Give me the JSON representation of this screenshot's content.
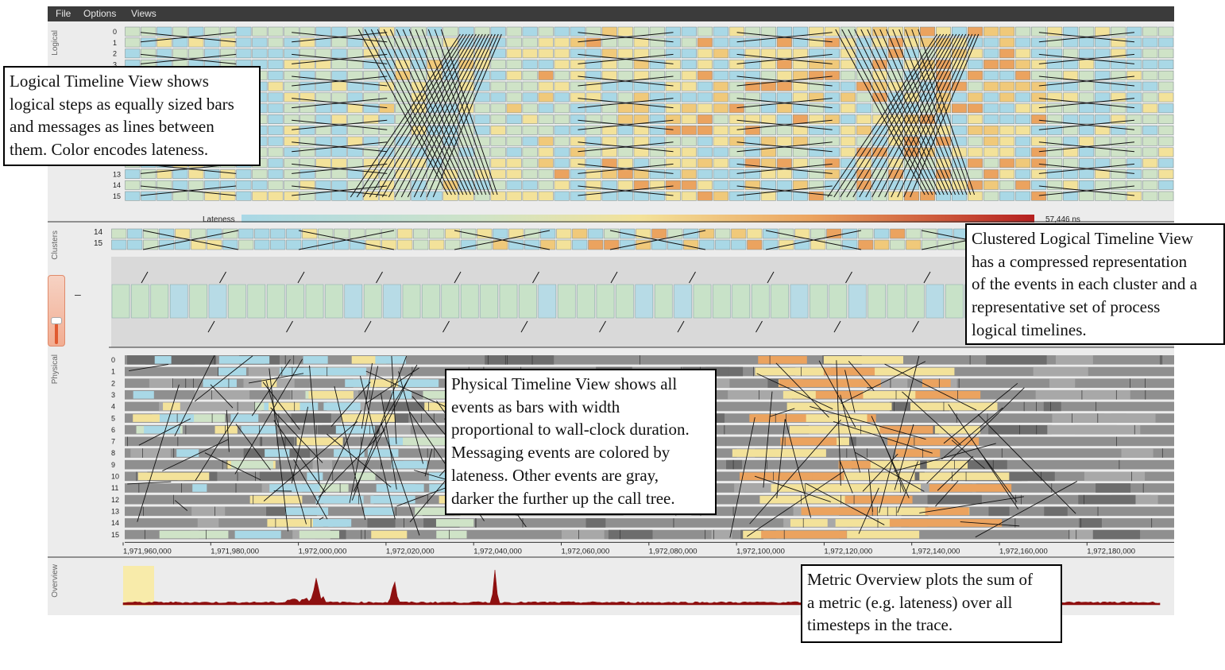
{
  "menubar": {
    "items": [
      "File",
      "Options",
      "Views"
    ]
  },
  "side_labels": {
    "logical": "Logical",
    "clusters": "Clusters",
    "physical": "Physical",
    "overview": "Overview"
  },
  "logical_view": {
    "process_labels": [
      "0",
      "1",
      "2",
      "3",
      "",
      "",
      "",
      "",
      "",
      "",
      "",
      "",
      "",
      "13",
      "14",
      "15"
    ]
  },
  "lateness_legend": {
    "label": "Lateness",
    "max": "57,446 ns"
  },
  "cluster_view": {
    "process_labels": [
      "14",
      "15"
    ]
  },
  "physical_view": {
    "process_labels": [
      "0",
      "1",
      "2",
      "3",
      "4",
      "5",
      "6",
      "7",
      "8",
      "9",
      "10",
      "11",
      "12",
      "13",
      "14",
      "15"
    ],
    "axis_ticks": [
      "1,971,960,000",
      "1,971,980,000",
      "1,972,000,000",
      "1,972,020,000",
      "1,972,040,000",
      "1,972,060,000",
      "1,972,080,000",
      "1,972,100,000",
      "1,972,120,000",
      "1,972,140,000",
      "1,972,160,000",
      "1,972,180,000"
    ]
  },
  "colors": {
    "on_time": "#a9d8e6",
    "slightly_late": "#cfe3c7",
    "medium_late": "#f3e29a",
    "late": "#eba35f",
    "very_late": "#b52020",
    "menubar": "#3b3b3b"
  },
  "callouts": {
    "logical": [
      "Logical Timeline View shows",
      "logical steps as equally sized bars",
      "and messages as lines between",
      "them. Color encodes lateness."
    ],
    "clustered": [
      "Clustered Logical Timeline View",
      "has a compressed representation",
      "of the events in each cluster and a",
      "representative set of process",
      "logical timelines."
    ],
    "physical": [
      "Physical Timeline View shows all",
      "events as bars with width",
      "proportional to wall-clock duration.",
      "Messaging events are colored by",
      "lateness. Other events are gray,",
      "darker the further up the call tree."
    ],
    "overview": [
      "Metric Overview plots the sum of",
      "a metric (e.g. lateness) over all",
      "timesteps in the trace."
    ]
  }
}
